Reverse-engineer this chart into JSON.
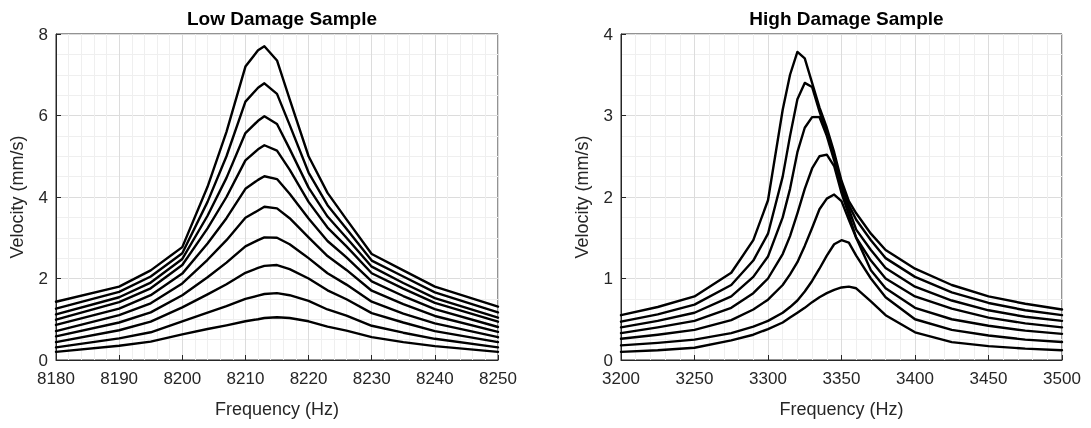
{
  "chart_data": [
    {
      "type": "line",
      "title": "Low Damage Sample",
      "xlabel": "Frequency (Hz)",
      "ylabel": "Velocity (mm/s)",
      "xlim": [
        8180,
        8250
      ],
      "xticks": [
        8180,
        8190,
        8200,
        8210,
        8220,
        8230,
        8240,
        8250
      ],
      "ylim": [
        0,
        8
      ],
      "yticks": [
        0,
        2,
        4,
        6,
        8
      ],
      "grid": true,
      "marker": "none",
      "line_style": "solid",
      "x": [
        8180,
        8190,
        8195,
        8200,
        8204,
        8207,
        8210,
        8212,
        8213,
        8215,
        8217,
        8220,
        8223,
        8226,
        8230,
        8235,
        8240,
        8250
      ],
      "series": [
        {
          "color": "#000000",
          "values": [
            1.43,
            1.8,
            2.2,
            2.77,
            4.25,
            5.6,
            7.2,
            7.6,
            7.7,
            7.35,
            6.4,
            5.0,
            4.1,
            3.45,
            2.6,
            2.2,
            1.8,
            1.31
          ]
        },
        {
          "color": "#000000",
          "values": [
            1.26,
            1.67,
            2.05,
            2.62,
            3.88,
            5.0,
            6.34,
            6.68,
            6.79,
            6.53,
            5.77,
            4.6,
            3.8,
            3.22,
            2.44,
            2.05,
            1.66,
            1.17
          ]
        },
        {
          "color": "#000000",
          "values": [
            1.12,
            1.54,
            1.9,
            2.48,
            3.54,
            4.47,
            5.57,
            5.87,
            5.98,
            5.79,
            5.18,
            4.23,
            3.52,
            3.0,
            2.29,
            1.89,
            1.52,
            1.04
          ]
        },
        {
          "color": "#000000",
          "values": [
            0.99,
            1.42,
            1.76,
            2.33,
            3.23,
            4.0,
            4.9,
            5.17,
            5.27,
            5.14,
            4.67,
            3.88,
            3.25,
            2.79,
            2.13,
            1.75,
            1.4,
            0.94
          ]
        },
        {
          "color": "#000000",
          "values": [
            0.86,
            1.26,
            1.59,
            2.12,
            2.86,
            3.48,
            4.2,
            4.42,
            4.51,
            4.44,
            4.08,
            3.47,
            2.92,
            2.52,
            1.93,
            1.57,
            1.25,
            0.81
          ]
        },
        {
          "color": "#000000",
          "values": [
            0.71,
            1.1,
            1.39,
            1.88,
            2.46,
            2.94,
            3.49,
            3.67,
            3.76,
            3.72,
            3.48,
            3.01,
            2.55,
            2.21,
            1.7,
            1.37,
            1.08,
            0.69
          ]
        },
        {
          "color": "#000000",
          "values": [
            0.58,
            0.92,
            1.17,
            1.59,
            2.03,
            2.39,
            2.79,
            2.94,
            3.01,
            3.0,
            2.84,
            2.5,
            2.13,
            1.85,
            1.43,
            1.14,
            0.9,
            0.56
          ]
        },
        {
          "color": "#000000",
          "values": [
            0.44,
            0.73,
            0.94,
            1.29,
            1.61,
            1.86,
            2.14,
            2.26,
            2.31,
            2.33,
            2.23,
            2.0,
            1.71,
            1.49,
            1.15,
            0.92,
            0.71,
            0.44
          ]
        },
        {
          "color": "#000000",
          "values": [
            0.31,
            0.53,
            0.68,
            0.95,
            1.16,
            1.32,
            1.5,
            1.58,
            1.62,
            1.64,
            1.59,
            1.45,
            1.24,
            1.09,
            0.84,
            0.67,
            0.52,
            0.31
          ]
        },
        {
          "color": "#000000",
          "values": [
            0.2,
            0.35,
            0.45,
            0.63,
            0.76,
            0.85,
            0.95,
            1.0,
            1.03,
            1.05,
            1.03,
            0.95,
            0.82,
            0.72,
            0.56,
            0.44,
            0.34,
            0.2
          ]
        }
      ]
    },
    {
      "type": "line",
      "title": "High Damage Sample",
      "xlabel": "Frequency (Hz)",
      "ylabel": "Velocity (mm/s)",
      "xlim": [
        3200,
        3500
      ],
      "xticks": [
        3200,
        3250,
        3300,
        3350,
        3400,
        3450,
        3500
      ],
      "ylim": [
        0,
        4
      ],
      "yticks": [
        0,
        1,
        2,
        3,
        4
      ],
      "grid": true,
      "marker": "none",
      "line_style": "solid",
      "x": [
        3200,
        3225,
        3250,
        3275,
        3290,
        3300,
        3310,
        3315,
        3320,
        3325,
        3330,
        3335,
        3340,
        3345,
        3350,
        3355,
        3360,
        3370,
        3380,
        3400,
        3425,
        3450,
        3475,
        3500
      ],
      "series": [
        {
          "color": "#000000",
          "values": [
            0.55,
            0.65,
            0.78,
            1.07,
            1.47,
            1.96,
            3.07,
            3.5,
            3.78,
            3.7,
            3.4,
            3.1,
            2.85,
            2.55,
            2.2,
            1.95,
            1.8,
            1.55,
            1.35,
            1.12,
            0.92,
            0.78,
            0.69,
            0.62
          ]
        },
        {
          "color": "#000000",
          "values": [
            0.47,
            0.56,
            0.68,
            0.92,
            1.22,
            1.55,
            2.25,
            2.75,
            3.2,
            3.4,
            3.35,
            3.05,
            2.78,
            2.5,
            2.15,
            1.9,
            1.72,
            1.47,
            1.25,
            1.02,
            0.83,
            0.7,
            0.61,
            0.55
          ]
        },
        {
          "color": "#000000",
          "values": [
            0.4,
            0.48,
            0.58,
            0.78,
            1.02,
            1.27,
            1.75,
            2.1,
            2.55,
            2.85,
            2.98,
            2.98,
            2.75,
            2.45,
            2.1,
            1.85,
            1.6,
            1.35,
            1.13,
            0.9,
            0.73,
            0.61,
            0.53,
            0.48
          ]
        },
        {
          "color": "#000000",
          "values": [
            0.33,
            0.4,
            0.48,
            0.64,
            0.82,
            1.0,
            1.3,
            1.52,
            1.8,
            2.1,
            2.35,
            2.5,
            2.52,
            2.38,
            2.05,
            1.78,
            1.5,
            1.22,
            1.0,
            0.78,
            0.63,
            0.52,
            0.45,
            0.4
          ]
        },
        {
          "color": "#000000",
          "values": [
            0.26,
            0.31,
            0.37,
            0.49,
            0.62,
            0.74,
            0.92,
            1.05,
            1.2,
            1.4,
            1.62,
            1.85,
            1.98,
            2.03,
            1.95,
            1.72,
            1.5,
            1.1,
            0.88,
            0.64,
            0.5,
            0.42,
            0.36,
            0.32
          ]
        },
        {
          "color": "#000000",
          "values": [
            0.18,
            0.21,
            0.25,
            0.33,
            0.41,
            0.48,
            0.58,
            0.65,
            0.73,
            0.84,
            0.97,
            1.12,
            1.28,
            1.42,
            1.47,
            1.44,
            1.28,
            1.0,
            0.77,
            0.5,
            0.37,
            0.3,
            0.25,
            0.22
          ]
        },
        {
          "color": "#000000",
          "values": [
            0.1,
            0.12,
            0.15,
            0.24,
            0.31,
            0.38,
            0.46,
            0.52,
            0.58,
            0.64,
            0.71,
            0.77,
            0.82,
            0.86,
            0.89,
            0.9,
            0.88,
            0.72,
            0.55,
            0.34,
            0.22,
            0.17,
            0.14,
            0.12
          ]
        }
      ]
    }
  ]
}
